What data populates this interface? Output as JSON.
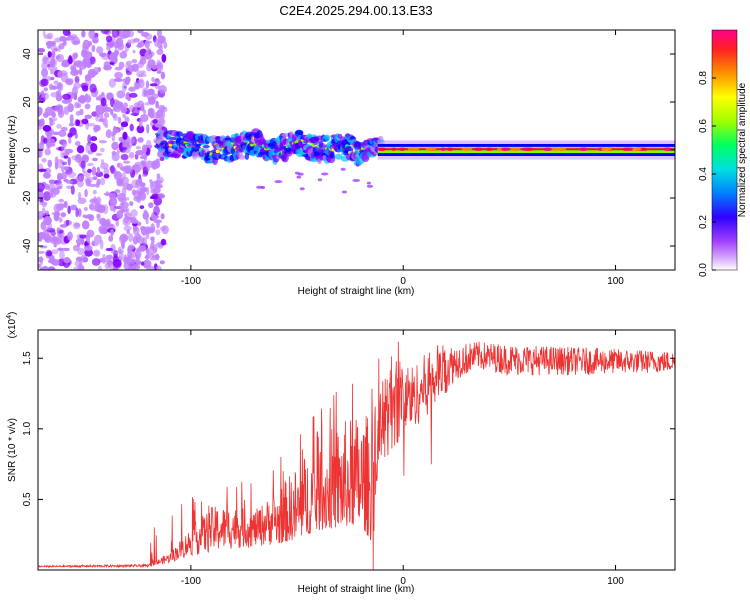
{
  "chart_data": [
    {
      "type": "heatmap",
      "title": "C2E4.2025.294.00.13.E33",
      "xlabel": "Height of straight line (km)",
      "ylabel": "Frequency (Hz)",
      "xlim": [
        -172,
        128
      ],
      "ylim": [
        -50,
        50
      ],
      "xticks": [
        -100,
        0,
        100
      ],
      "yticks": [
        40,
        20,
        0,
        -20,
        -40
      ],
      "xtick_labels": [
        "-100",
        "0",
        "100"
      ],
      "ytick_labels": [
        "40",
        "20",
        "0",
        "-20",
        "-40"
      ],
      "colorbar": {
        "label": "Normalized spectral amplitude",
        "range": [
          0,
          1
        ],
        "ticks": [
          0.0,
          0.2,
          0.4,
          0.6,
          0.8
        ],
        "tick_labels": [
          "0.0",
          "0.2",
          "0.4",
          "0.6",
          "0.8"
        ],
        "colors": [
          "#ffffff",
          "#c080ff",
          "#8000ff",
          "#0000ff",
          "#00c0ff",
          "#00ff80",
          "#80ff00",
          "#ffff00",
          "#ff8000",
          "#ff0040",
          "#ff0080"
        ]
      },
      "features": {
        "noise_region_km": [
          -172,
          -120
        ],
        "tone_trace": [
          {
            "x": -115,
            "f": 3
          },
          {
            "x": -100,
            "f": 2
          },
          {
            "x": -90,
            "f": 0
          },
          {
            "x": -80,
            "f": 1
          },
          {
            "x": -70,
            "f": 3
          },
          {
            "x": -60,
            "f": -1
          },
          {
            "x": -50,
            "f": 4
          },
          {
            "x": -40,
            "f": 0
          },
          {
            "x": -30,
            "f": 2
          },
          {
            "x": -20,
            "f": -1
          },
          {
            "x": -12,
            "f": 2
          },
          {
            "x": -5,
            "f": 1
          },
          {
            "x": 5,
            "f": 1
          },
          {
            "x": 15,
            "f": 0
          },
          {
            "x": 128,
            "f": 0
          }
        ]
      }
    },
    {
      "type": "line",
      "xlabel": "Height of straight line (km)",
      "ylabel": "SNR (10 * v/v)",
      "y_scale_label": "(x10",
      "y_scale_exp": "4",
      "y_scale_close": ")",
      "xlim": [
        -172,
        128
      ],
      "ylim": [
        0,
        1.7
      ],
      "xticks": [
        -100,
        0,
        100
      ],
      "yticks": [
        0.5,
        1.0,
        1.5
      ],
      "xtick_labels": [
        "-100",
        "0",
        "100"
      ],
      "ytick_labels": [
        "0.5",
        "1.0",
        "1.5"
      ],
      "series": [
        {
          "name": "SNR",
          "color": "#ee3333",
          "envelope": [
            {
              "x": -172,
              "base": 0.02,
              "peak": 0.03
            },
            {
              "x": -120,
              "base": 0.02,
              "peak": 0.04
            },
            {
              "x": -110,
              "base": 0.05,
              "peak": 0.12
            },
            {
              "x": -100,
              "base": 0.1,
              "peak": 0.3
            },
            {
              "x": -90,
              "base": 0.12,
              "peak": 0.45
            },
            {
              "x": -80,
              "base": 0.15,
              "peak": 0.45
            },
            {
              "x": -70,
              "base": 0.16,
              "peak": 0.42
            },
            {
              "x": -60,
              "base": 0.18,
              "peak": 0.55
            },
            {
              "x": -50,
              "base": 0.22,
              "peak": 0.75
            },
            {
              "x": -40,
              "base": 0.28,
              "peak": 0.95
            },
            {
              "x": -30,
              "base": 0.3,
              "peak": 1.05
            },
            {
              "x": -20,
              "base": 0.32,
              "peak": 1.12
            },
            {
              "x": -15,
              "base": 0.2,
              "peak": 1.1
            },
            {
              "x": -12,
              "base": 0.7,
              "peak": 1.25
            },
            {
              "x": -5,
              "base": 0.85,
              "peak": 1.55
            },
            {
              "x": 5,
              "base": 1.0,
              "peak": 1.45
            },
            {
              "x": 15,
              "base": 1.15,
              "peak": 1.6
            },
            {
              "x": 25,
              "base": 1.35,
              "peak": 1.6
            },
            {
              "x": 35,
              "base": 1.42,
              "peak": 1.62
            },
            {
              "x": 50,
              "base": 1.38,
              "peak": 1.6
            },
            {
              "x": 80,
              "base": 1.38,
              "peak": 1.58
            },
            {
              "x": 128,
              "base": 1.4,
              "peak": 1.55
            }
          ]
        }
      ]
    }
  ]
}
